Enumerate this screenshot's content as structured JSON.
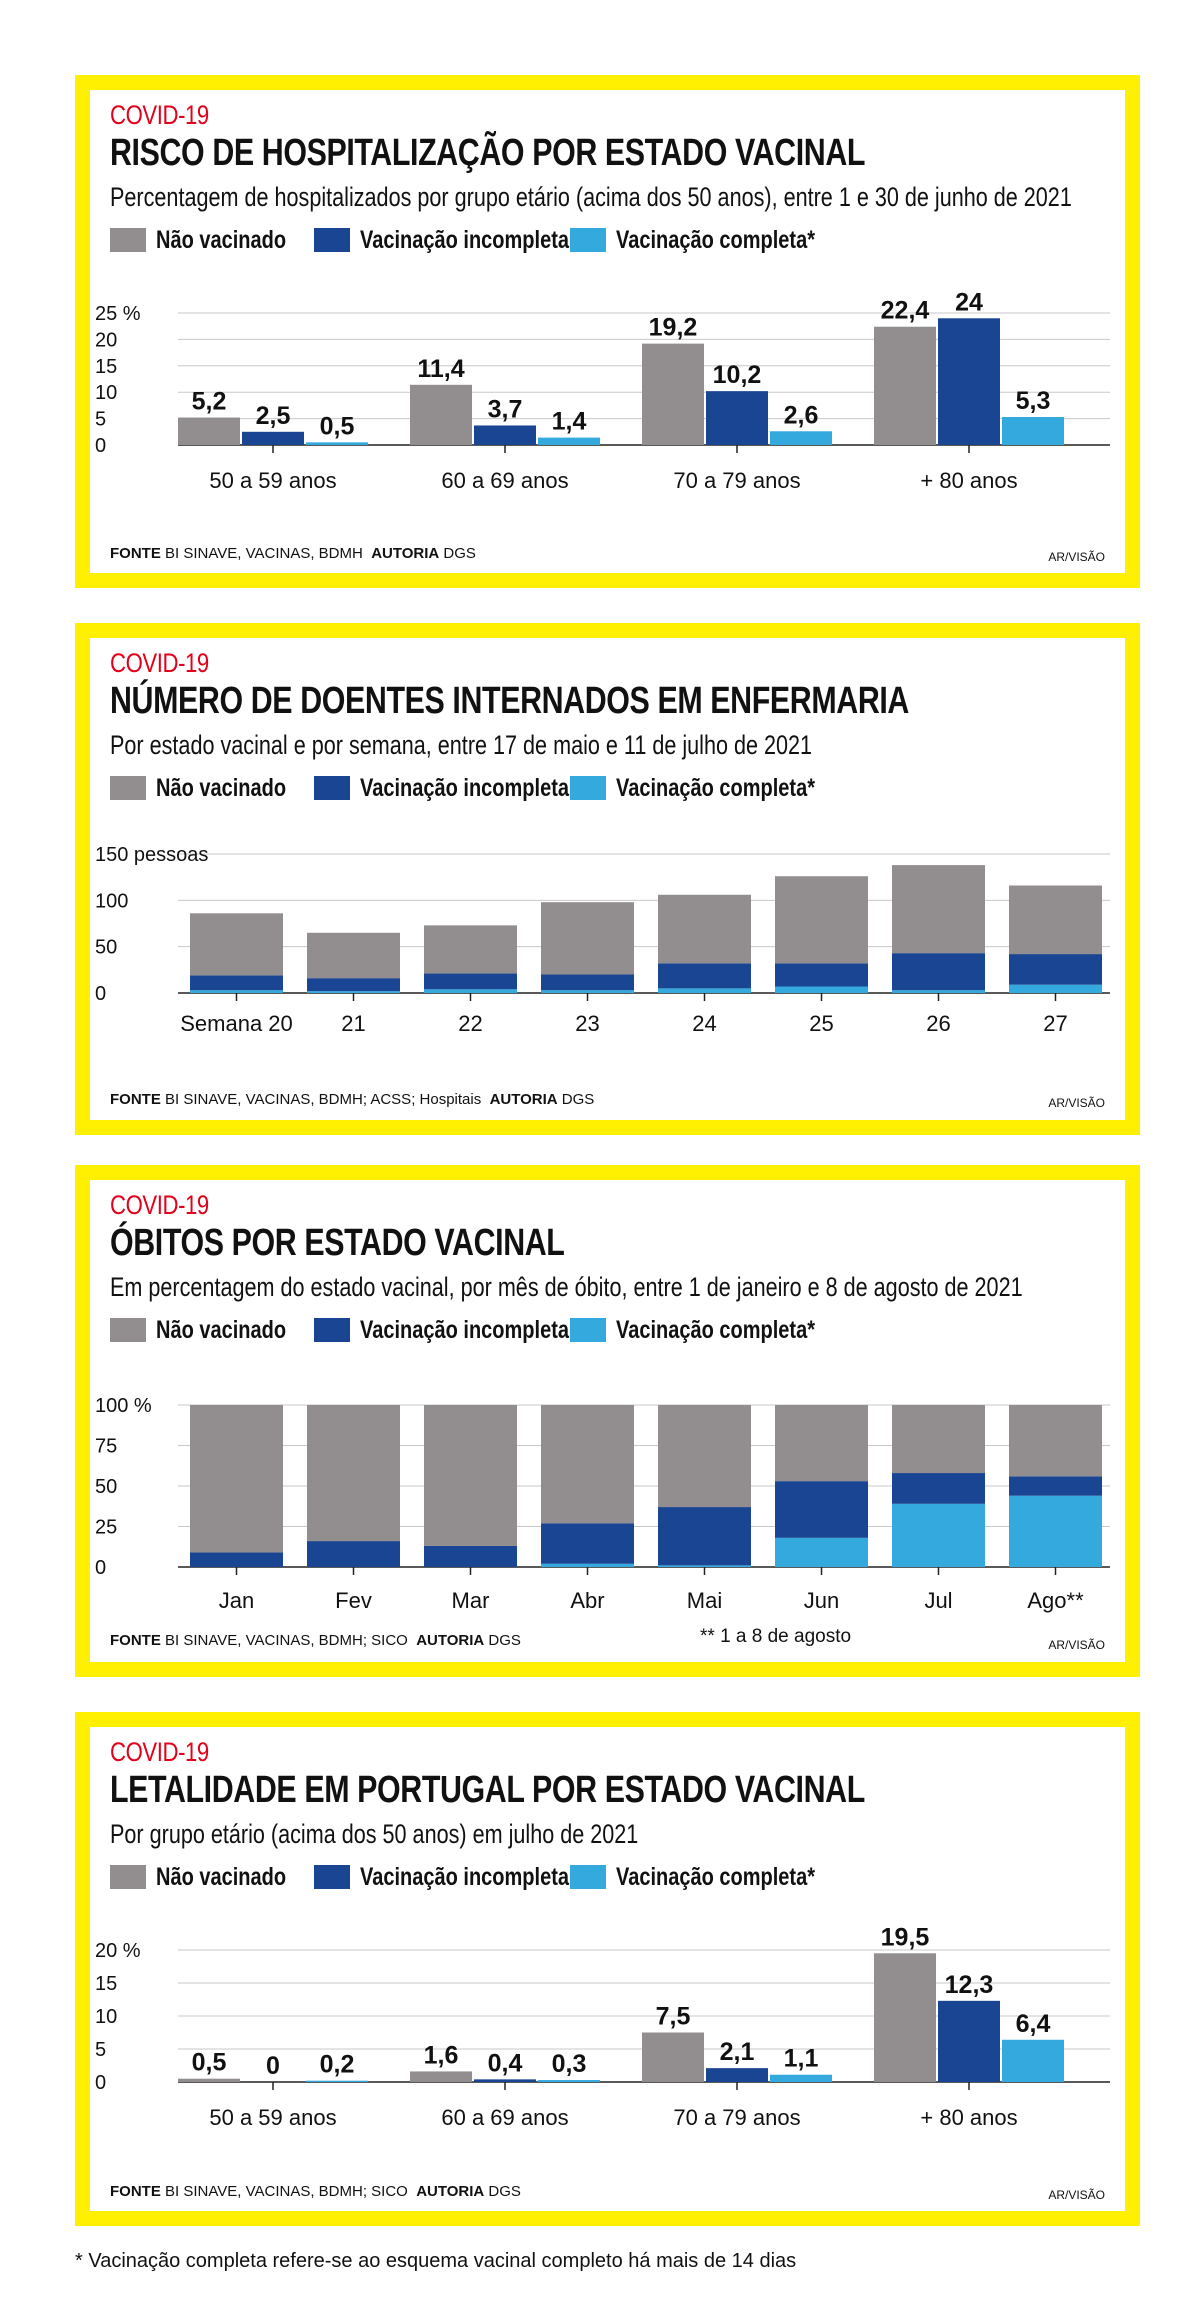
{
  "colors": {
    "frame": "#ffef00",
    "kicker": "#e2001a",
    "unvaccinated": "#928d8e",
    "incomplete": "#1a4592",
    "complete": "#34a9dd"
  },
  "legend": {
    "unvaccinated": "Não vacinado",
    "incomplete": "Vacinação incompleta",
    "complete": "Vacinação completa*"
  },
  "panels": [
    {
      "kicker": "COVID-19",
      "title": "RISCO DE HOSPITALIZAÇÃO POR ESTADO VACINAL",
      "subtitle": "Percentagem de hospitalizados por grupo etário (acima dos 50 anos), entre 1 e 30 de junho de 2021",
      "source_label": "FONTE",
      "source_text": "BI SINAVE, VACINAS, BDMH",
      "author_label": "AUTORIA",
      "author_text": "DGS",
      "credit": "AR/VISÃO"
    },
    {
      "kicker": "COVID-19",
      "title": "NÚMERO DE DOENTES INTERNADOS EM ENFERMARIA",
      "subtitle": "Por estado vacinal e por semana, entre 17 de maio e 11 de julho de 2021",
      "source_label": "FONTE",
      "source_text": "BI SINAVE, VACINAS, BDMH; ACSS; Hospitais",
      "author_label": "AUTORIA",
      "author_text": "DGS",
      "credit": "AR/VISÃO"
    },
    {
      "kicker": "COVID-19",
      "title": "ÓBITOS POR ESTADO VACINAL",
      "subtitle": "Em percentagem do estado vacinal, por mês de óbito, entre 1 de janeiro e 8 de agosto de 2021",
      "source_label": "FONTE",
      "source_text": "BI SINAVE, VACINAS, BDMH; SICO",
      "author_label": "AUTORIA",
      "author_text": "DGS",
      "note": "** 1 a 8 de agosto",
      "credit": "AR/VISÃO"
    },
    {
      "kicker": "COVID-19",
      "title": "LETALIDADE EM PORTUGAL POR ESTADO VACINAL",
      "subtitle": "Por grupo etário (acima dos 50 anos) em julho de 2021",
      "source_label": "FONTE",
      "source_text": "BI SINAVE, VACINAS, BDMH; SICO",
      "author_label": "AUTORIA",
      "author_text": "DGS",
      "credit": "AR/VISÃO"
    }
  ],
  "footnote": "* Vacinação completa refere-se ao esquema vacinal completo há mais de 14 dias",
  "chart_data": [
    {
      "type": "bar",
      "mode": "grouped",
      "categories": [
        "50 a 59 anos",
        "60 a 69 anos",
        "70 a 79 anos",
        "+ 80 anos"
      ],
      "series": [
        {
          "name": "Não vacinado",
          "values": [
            5.2,
            11.4,
            19.2,
            22.4
          ],
          "labels": [
            "5,2",
            "11,4",
            "19,2",
            "22,4"
          ]
        },
        {
          "name": "Vacinação incompleta",
          "values": [
            2.5,
            3.7,
            10.2,
            24
          ],
          "labels": [
            "2,5",
            "3,7",
            "10,2",
            "24"
          ]
        },
        {
          "name": "Vacinação completa*",
          "values": [
            0.5,
            1.4,
            2.6,
            5.3
          ],
          "labels": [
            "0,5",
            "1,4",
            "2,6",
            "5,3"
          ]
        }
      ],
      "ylim": [
        0,
        25
      ],
      "yticks": [
        "0",
        "5",
        "10",
        "15",
        "20",
        "25 %"
      ],
      "ytick_values": [
        0,
        5,
        10,
        15,
        20,
        25
      ],
      "grid": true
    },
    {
      "type": "bar",
      "mode": "stacked",
      "categories": [
        "Semana 20",
        "21",
        "22",
        "23",
        "24",
        "25",
        "26",
        "27"
      ],
      "series": [
        {
          "name": "Vacinação completa*",
          "values": [
            3,
            2,
            4,
            3,
            5,
            7,
            3,
            9
          ]
        },
        {
          "name": "Vacinação incompleta",
          "values": [
            16,
            14,
            17,
            17,
            27,
            25,
            40,
            33
          ]
        },
        {
          "name": "Não vacinado",
          "values": [
            67,
            49,
            52,
            78,
            74,
            94,
            95,
            74
          ]
        }
      ],
      "ylim": [
        0,
        150
      ],
      "yticks": [
        "0",
        "50",
        "100",
        "150  pessoas"
      ],
      "ytick_values": [
        0,
        50,
        100,
        150
      ],
      "grid": true
    },
    {
      "type": "bar",
      "mode": "stacked",
      "categories": [
        "Jan",
        "Fev",
        "Mar",
        "Abr",
        "Mai",
        "Jun",
        "Jul",
        "Ago**"
      ],
      "series": [
        {
          "name": "Vacinação completa*",
          "values": [
            0,
            0,
            0,
            2,
            1,
            18,
            39,
            44
          ]
        },
        {
          "name": "Vacinação incompleta",
          "values": [
            9,
            16,
            13,
            25,
            36,
            35,
            19,
            12
          ]
        },
        {
          "name": "Não vacinado",
          "values": [
            91,
            84,
            87,
            73,
            63,
            47,
            42,
            44
          ]
        }
      ],
      "ylim": [
        0,
        100
      ],
      "yticks": [
        "0",
        "25",
        "50",
        "75",
        "100 %"
      ],
      "ytick_values": [
        0,
        25,
        50,
        75,
        100
      ],
      "grid": true
    },
    {
      "type": "bar",
      "mode": "grouped",
      "categories": [
        "50 a 59 anos",
        "60 a 69 anos",
        "70 a 79 anos",
        "+ 80 anos"
      ],
      "series": [
        {
          "name": "Não vacinado",
          "values": [
            0.5,
            1.6,
            7.5,
            19.5
          ],
          "labels": [
            "0,5",
            "1,6",
            "7,5",
            "19,5"
          ]
        },
        {
          "name": "Vacinação incompleta",
          "values": [
            0,
            0.4,
            2.1,
            12.3
          ],
          "labels": [
            "0",
            "0,4",
            "2,1",
            "12,3"
          ]
        },
        {
          "name": "Vacinação completa*",
          "values": [
            0.2,
            0.3,
            1.1,
            6.4
          ],
          "labels": [
            "0,2",
            "0,3",
            "1,1",
            "6,4"
          ]
        }
      ],
      "ylim": [
        0,
        20
      ],
      "yticks": [
        "0",
        "5",
        "10",
        "15",
        "20 %"
      ],
      "ytick_values": [
        0,
        5,
        10,
        15,
        20
      ],
      "grid": true
    }
  ]
}
